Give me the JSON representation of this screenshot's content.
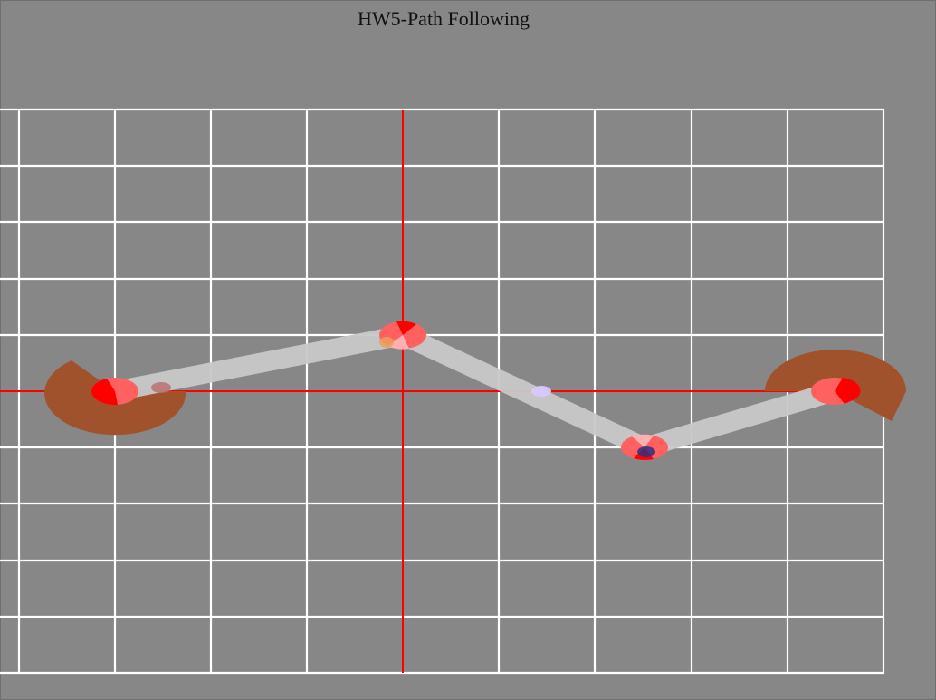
{
  "page": {
    "title": "HW5-Path Following"
  },
  "scene": {
    "background": "#878787",
    "grid_color": "#ffffff",
    "axis_color": "#ff0000",
    "path_color": "#c8c8c8",
    "arc_color": "#a0522d",
    "waypoint_color": "#ff6060",
    "waypoint_accent": "#ff0000",
    "waypoint_count": 5,
    "agent_colors": [
      "#e8a060",
      "#b87070",
      "#d8c8ff",
      "#303080"
    ]
  }
}
